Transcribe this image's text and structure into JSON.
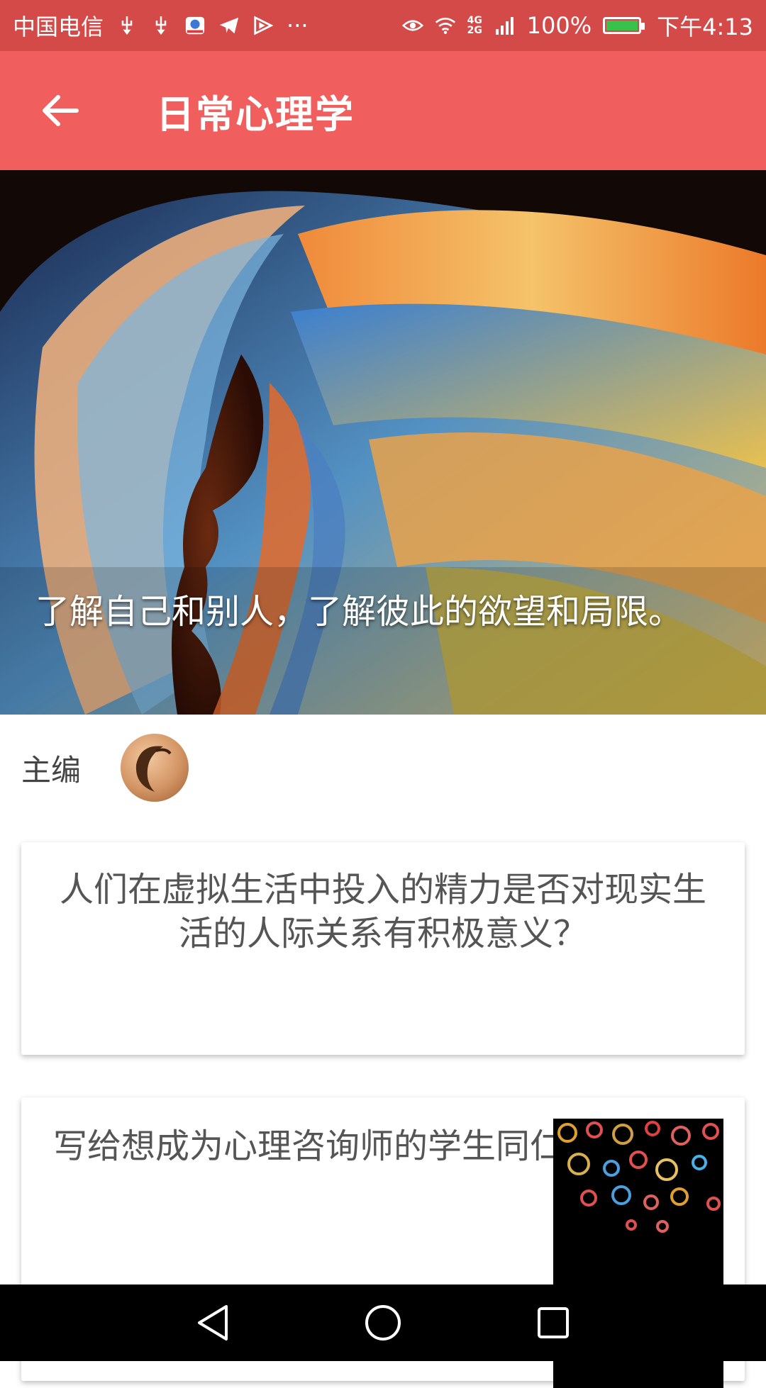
{
  "status_bar": {
    "carrier": "中国电信",
    "overflow": "···",
    "network": "4G 2G",
    "battery": "100%",
    "time": "下午4:13",
    "icons": [
      "usb-icon",
      "usb-icon",
      "video-app-icon",
      "telegram-icon",
      "play-icon",
      "eye-icon",
      "wifi-icon",
      "signal-icon",
      "battery-icon"
    ]
  },
  "app_bar": {
    "title": "日常心理学",
    "back_icon": "arrow-left-icon"
  },
  "hero": {
    "caption": "了解自己和别人，了解彼此的欲望和局限。"
  },
  "editor": {
    "label": "主编"
  },
  "cards": [
    {
      "title": "人们在虚拟生活中投入的精力是否对现实生活的人际关系有积极意义？"
    },
    {
      "title": "写给想成为心理咨询师的学生同仁",
      "thumb": "gears-image"
    }
  ],
  "nav_bar": {
    "icons": [
      "back-triangle-icon",
      "home-circle-icon",
      "recents-square-icon"
    ]
  },
  "colors": {
    "status_bar": "#d44a48",
    "app_bar": "#f05e5d",
    "nav_bar": "#000000"
  }
}
